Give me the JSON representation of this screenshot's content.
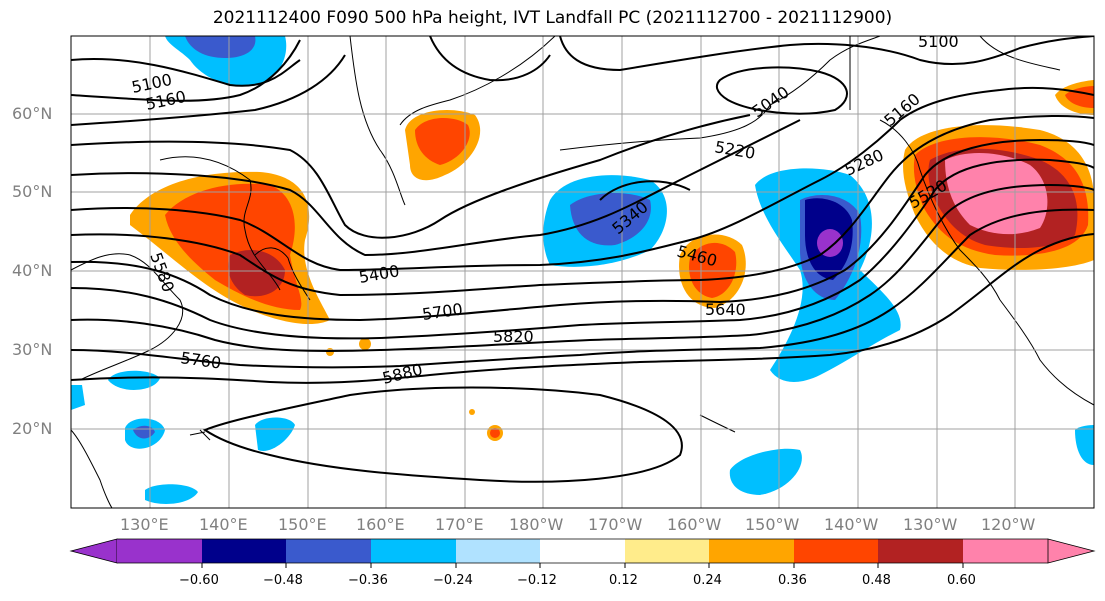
{
  "title": "2021112400 F090 500 hPa height, IVT Landfall PC (2021112700 - 2021112900)",
  "lat_labels": [
    "60°N",
    "50°N",
    "40°N",
    "30°N",
    "20°N"
  ],
  "lon_labels": [
    "130°E",
    "140°E",
    "150°E",
    "160°E",
    "170°E",
    "180°W",
    "170°W",
    "160°W",
    "150°W",
    "140°W",
    "130°W",
    "120°W"
  ],
  "contour_labels": [
    "5100",
    "5160",
    "5100",
    "5040",
    "5220",
    "5160",
    "5280",
    "5340",
    "5400",
    "5460",
    "5520",
    "5580",
    "5640",
    "5700",
    "5760",
    "5820",
    "5880"
  ],
  "colorbar": {
    "ticks": [
      "−0.60",
      "−0.48",
      "−0.36",
      "−0.24",
      "−0.12",
      "0.12",
      "0.24",
      "0.36",
      "0.48",
      "0.60"
    ],
    "colors": [
      "#9932CC",
      "#00008B",
      "#3A5ACD",
      "#00BFFF",
      "#B0E2FF",
      "#FFFFFF",
      "#FFEC8B",
      "#FFA500",
      "#FF4500",
      "#B22222",
      "#FF82AB"
    ]
  }
}
